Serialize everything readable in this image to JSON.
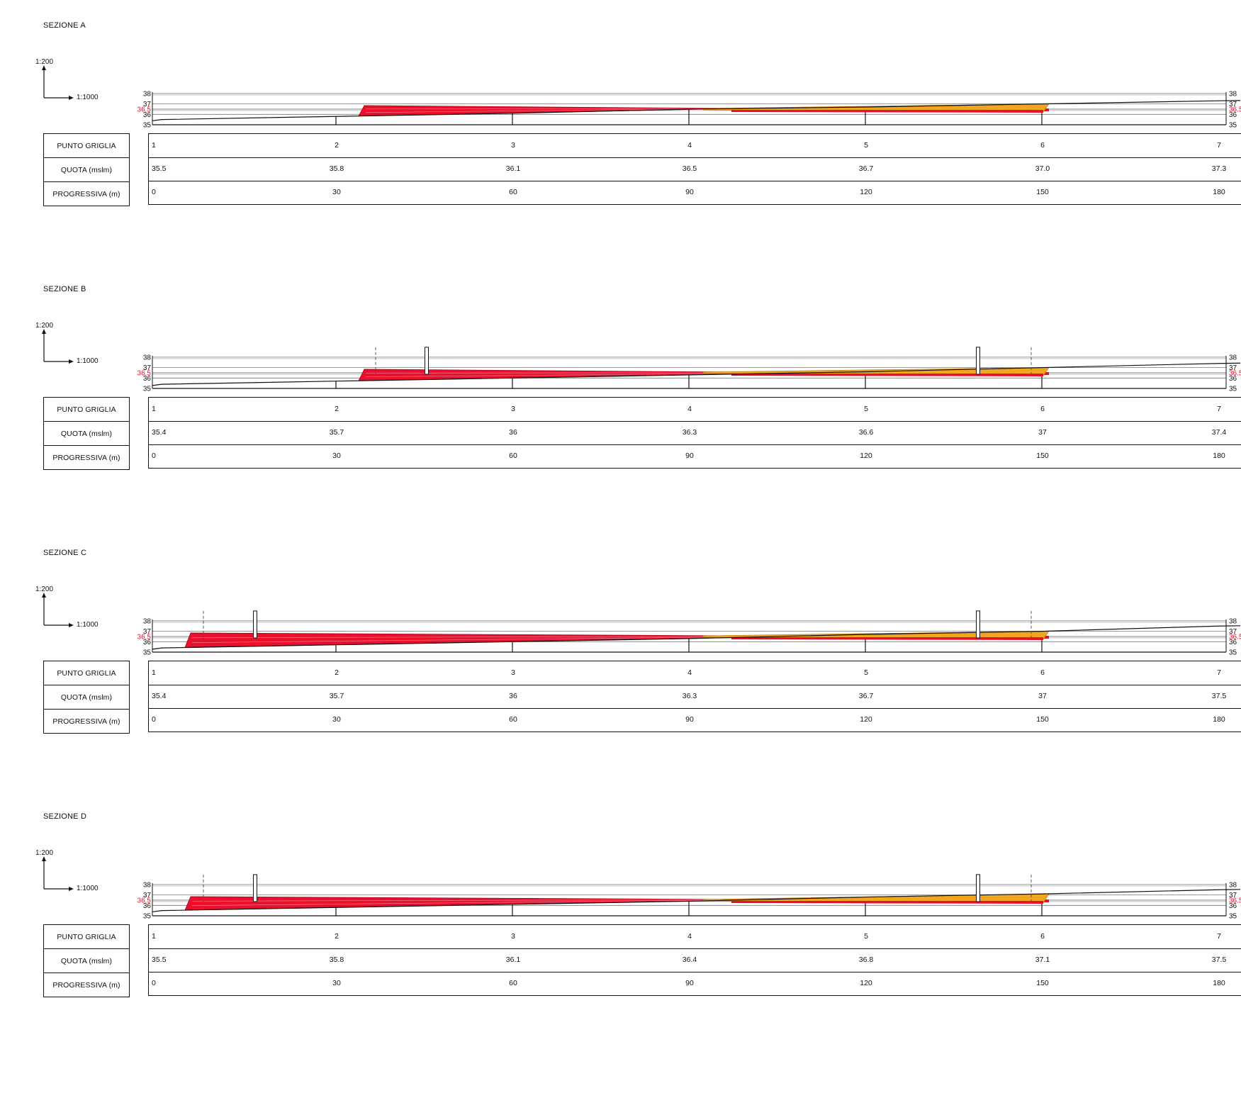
{
  "scale_vertical": "1:200",
  "scale_horizontal": "1:1000",
  "row_labels": [
    "PUNTO GRIGLIA",
    "QUOTA (mslm)",
    "PROGRESSIVA (m)"
  ],
  "axis_ticks": [
    "38",
    "37",
    "36.5",
    "36",
    "35"
  ],
  "colors": {
    "red": "#e8102a",
    "orange": "#f2a51f",
    "pink": "#f07a9a",
    "line": "#111111"
  },
  "sections": [
    {
      "title": "SEZIONE A",
      "punti": [
        "1",
        "2",
        "3",
        "4",
        "5",
        "6",
        "7"
      ],
      "quote": [
        "35.5",
        "35.8",
        "36.1",
        "36.5",
        "36.7",
        "37.0",
        "37.3"
      ],
      "progressive": [
        "0",
        "30",
        "60",
        "90",
        "120",
        "150",
        "180"
      ],
      "has_posts": false
    },
    {
      "title": "SEZIONE B",
      "punti": [
        "1",
        "2",
        "3",
        "4",
        "5",
        "6",
        "7"
      ],
      "quote": [
        "35.4",
        "35.7",
        "36",
        "36.3",
        "36.6",
        "37",
        "37.4"
      ],
      "progressive": [
        "0",
        "30",
        "60",
        "90",
        "120",
        "150",
        "180"
      ],
      "has_posts": true
    },
    {
      "title": "SEZIONE C",
      "punti": [
        "1",
        "2",
        "3",
        "4",
        "5",
        "6",
        "7"
      ],
      "quote": [
        "35.4",
        "35.7",
        "36",
        "36.3",
        "36.7",
        "37",
        "37.5"
      ],
      "progressive": [
        "0",
        "30",
        "60",
        "90",
        "120",
        "150",
        "180"
      ],
      "has_posts": true
    },
    {
      "title": "SEZIONE D",
      "punti": [
        "1",
        "2",
        "3",
        "4",
        "5",
        "6",
        "7"
      ],
      "quote": [
        "35.5",
        "35.8",
        "36.1",
        "36.4",
        "36.8",
        "37.1",
        "37.5"
      ],
      "progressive": [
        "0",
        "30",
        "60",
        "90",
        "120",
        "150",
        "180"
      ],
      "has_posts": true
    }
  ]
}
